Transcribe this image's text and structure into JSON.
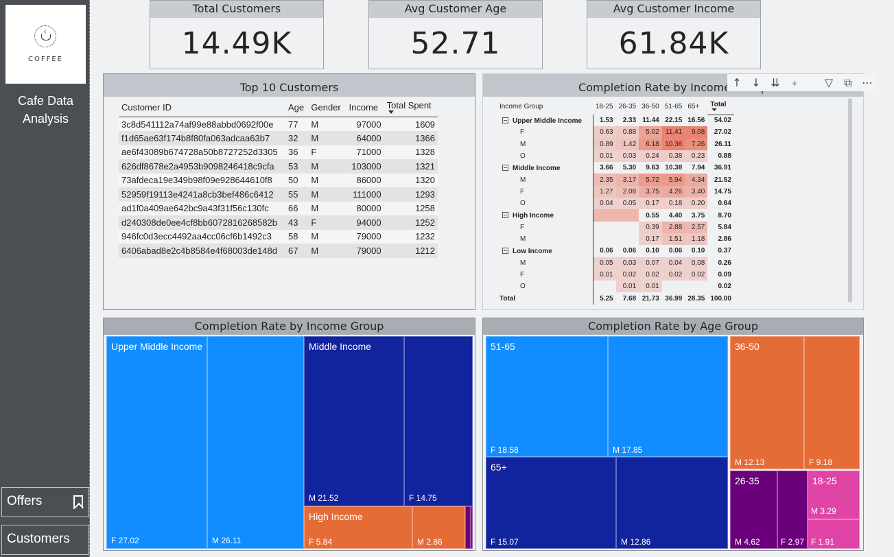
{
  "sidebar": {
    "logo_text": "COFFEE",
    "app_title": "Cafe Data Analysis",
    "nav": [
      {
        "label": "Offers",
        "icon": "bookmark-icon"
      },
      {
        "label": "Customers"
      }
    ]
  },
  "kpis": [
    {
      "title": "Total Customers",
      "value": "14.49K"
    },
    {
      "title": "Avg Customer Age",
      "value": "52.71"
    },
    {
      "title": "Avg Customer Income",
      "value": "61.84K"
    }
  ],
  "top10": {
    "title": "Top 10 Customers",
    "columns": [
      "Customer ID",
      "Age",
      "Gender",
      "Income",
      "Total Spent"
    ],
    "sorted_column": "Total Spent",
    "rows": [
      [
        "3c8d541112a74af99e88abbd0692f00e",
        "77",
        "M",
        "97000",
        "1609"
      ],
      [
        "f1d65ae63f174b8f80fa063adcaa63b7",
        "32",
        "M",
        "64000",
        "1366"
      ],
      [
        "ae6f43089b674728a50b8727252d3305",
        "36",
        "F",
        "71000",
        "1328"
      ],
      [
        "626df8678e2a4953b9098246418c9cfa",
        "53",
        "M",
        "103000",
        "1321"
      ],
      [
        "73afdeca19e349b98f09e928644610f8",
        "50",
        "M",
        "86000",
        "1320"
      ],
      [
        "52959f19113e4241a8cb3bef486c6412",
        "55",
        "M",
        "111000",
        "1293"
      ],
      [
        "ad1f0a409ae642bc9a43f31f56c130fc",
        "66",
        "M",
        "80000",
        "1258"
      ],
      [
        "d240308de0ee4cf8bb6072816268582b",
        "43",
        "F",
        "94000",
        "1252"
      ],
      [
        "946fc0d3ecc4492aa4cc06cf6b1492c3",
        "58",
        "M",
        "79000",
        "1232"
      ],
      [
        "6406abad8e2c4b8584e4f68003de148d",
        "67",
        "M",
        "79000",
        "1212"
      ]
    ]
  },
  "matrix": {
    "title": "Completion Rate by Income Group",
    "row_header": "Income Group",
    "columns": [
      "18-25",
      "26-35",
      "36-50",
      "51-65",
      "65+",
      "Total"
    ],
    "toolbar_icons": [
      "drill-up-icon",
      "drill-down-icon",
      "expand-all-icon",
      "expand-next-icon",
      "filter-icon",
      "focus-mode-icon",
      "more-options-icon"
    ],
    "heat_color": "#e8705a",
    "groups": [
      {
        "name": "Upper Middle Income",
        "values": [
          "1.53",
          "2.33",
          "11.44",
          "22.15",
          "16.56",
          "54.02"
        ],
        "children": [
          {
            "name": "F",
            "values": [
              "0.63",
              "0.88",
              "5.02",
              "11.41",
              "9.08",
              "27.02"
            ]
          },
          {
            "name": "M",
            "values": [
              "0.89",
              "1.42",
              "6.18",
              "10.36",
              "7.26",
              "26.11"
            ]
          },
          {
            "name": "O",
            "values": [
              "0.01",
              "0.03",
              "0.24",
              "0.38",
              "0.23",
              "0.88"
            ]
          }
        ]
      },
      {
        "name": "Middle Income",
        "values": [
          "3.66",
          "5.30",
          "9.63",
          "10.38",
          "7.94",
          "36.91"
        ],
        "children": [
          {
            "name": "M",
            "values": [
              "2.35",
              "3.17",
              "5.72",
              "5.94",
              "4.34",
              "21.52"
            ]
          },
          {
            "name": "F",
            "values": [
              "1.27",
              "2.08",
              "3.75",
              "4.26",
              "3.40",
              "14.75"
            ]
          },
          {
            "name": "O",
            "values": [
              "0.04",
              "0.05",
              "0.17",
              "0.18",
              "0.20",
              "0.64"
            ]
          }
        ]
      },
      {
        "name": "High Income",
        "values": [
          "",
          "",
          "0.55",
          "4.40",
          "3.75",
          "8.70"
        ],
        "children": [
          {
            "name": "F",
            "values": [
              "",
              "",
              "0.39",
              "2.88",
              "2.57",
              "5.84"
            ]
          },
          {
            "name": "M",
            "values": [
              "",
              "",
              "0.17",
              "1.51",
              "1.18",
              "2.86"
            ]
          }
        ]
      },
      {
        "name": "Low Income",
        "values": [
          "0.06",
          "0.06",
          "0.10",
          "0.06",
          "0.10",
          "0.37"
        ],
        "children": [
          {
            "name": "M",
            "values": [
              "0.05",
              "0.03",
              "0.07",
              "0.04",
              "0.08",
              "0.26"
            ]
          },
          {
            "name": "F",
            "values": [
              "0.01",
              "0.02",
              "0.02",
              "0.02",
              "0.02",
              "0.09"
            ]
          },
          {
            "name": "O",
            "values": [
              "",
              "0.01",
              "0.01",
              "",
              "",
              "0.02"
            ]
          }
        ]
      }
    ],
    "total": {
      "name": "Total",
      "values": [
        "5.25",
        "7.68",
        "21.73",
        "36.99",
        "28.35",
        "100.00"
      ]
    }
  },
  "chart_data": [
    {
      "type": "treemap",
      "title": "Completion Rate by Income Group",
      "groups": [
        {
          "name": "Upper Middle Income",
          "color": "#118dff",
          "leaves": [
            {
              "label": "F",
              "value": 27.02
            },
            {
              "label": "M",
              "value": 26.11
            }
          ]
        },
        {
          "name": "Middle Income",
          "color": "#12239e",
          "leaves": [
            {
              "label": "M",
              "value": 21.52
            },
            {
              "label": "F",
              "value": 14.75
            }
          ]
        },
        {
          "name": "High Income",
          "color": "#e66c37",
          "leaves": [
            {
              "label": "F",
              "value": 5.84
            },
            {
              "label": "M",
              "value": 2.86
            }
          ]
        },
        {
          "name": "Low Income",
          "color": "#6b007b",
          "leaves": [
            {
              "label": "M",
              "value": 0.26
            },
            {
              "label": "F",
              "value": 0.09
            }
          ]
        }
      ]
    },
    {
      "type": "treemap",
      "title": "Completion Rate by Age Group",
      "groups": [
        {
          "name": "51-65",
          "color": "#118dff",
          "leaves": [
            {
              "label": "F",
              "value": 18.58
            },
            {
              "label": "M",
              "value": 17.85
            }
          ]
        },
        {
          "name": "65+",
          "color": "#12239e",
          "leaves": [
            {
              "label": "F",
              "value": 15.07
            },
            {
              "label": "M",
              "value": 12.86
            }
          ]
        },
        {
          "name": "36-50",
          "color": "#e66c37",
          "leaves": [
            {
              "label": "M",
              "value": 12.13
            },
            {
              "label": "F",
              "value": 9.18
            }
          ]
        },
        {
          "name": "26-35",
          "color": "#6b007b",
          "leaves": [
            {
              "label": "M",
              "value": 4.62
            },
            {
              "label": "F",
              "value": 2.97
            }
          ]
        },
        {
          "name": "18-25",
          "color": "#e044a7",
          "leaves": [
            {
              "label": "M",
              "value": 3.29
            },
            {
              "label": "F",
              "value": 1.91
            }
          ]
        }
      ]
    }
  ]
}
